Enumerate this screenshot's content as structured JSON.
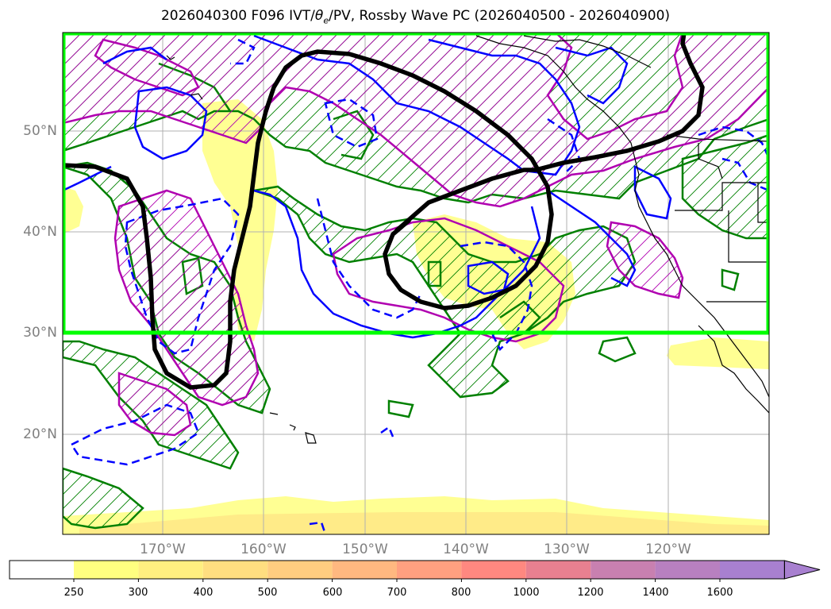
{
  "title": {
    "main": "2026040300 F096 IVT/",
    "theta": "θ",
    "theta_sub": "e",
    "rest": "/PV, Rossby Wave PC (2026040500 - 2026040900)"
  },
  "axes": {
    "lat_labels": [
      "50°N",
      "40°N",
      "30°N",
      "20°N"
    ],
    "lon_labels": [
      "170°W",
      "160°W",
      "150°W",
      "140°W",
      "130°W",
      "120°W"
    ]
  },
  "colorbar": {
    "labels": [
      "250",
      "300",
      "400",
      "500",
      "600",
      "700",
      "800",
      "1000",
      "1200",
      "1400",
      "1600"
    ],
    "colors": [
      "#ffffff",
      "#ffff80",
      "#ffef80",
      "#ffde80",
      "#ffcd80",
      "#ffb880",
      "#ffa080",
      "#ff8880",
      "#e88090",
      "#c880b0",
      "#b880c0",
      "#a880d0"
    ]
  },
  "colors": {
    "highlight_box": "#00ff00",
    "green_contour": "#008000",
    "magenta_contour": "#b000b0",
    "blue_contour": "#0000ff",
    "black_contour": "#000000",
    "ivt_fill": "#ffff80"
  }
}
